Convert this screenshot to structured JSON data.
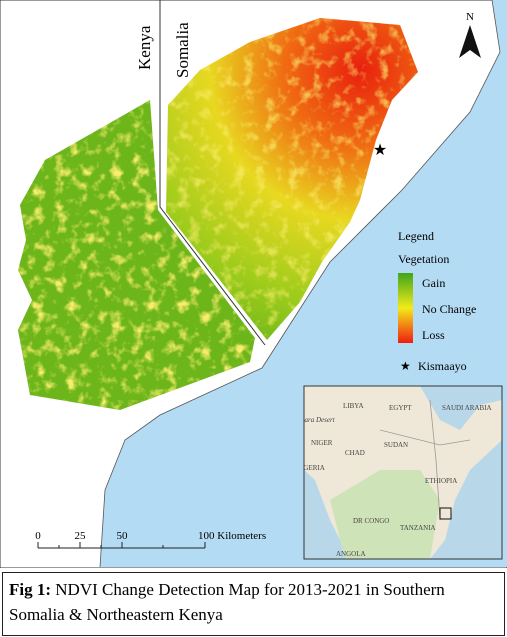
{
  "map": {
    "north_label": "N",
    "country_labels": [
      "Kenya",
      "Somalia"
    ],
    "legend": {
      "title": "Legend",
      "subtitle": "Vegetation",
      "items": [
        "Gain",
        "No Change",
        "Loss"
      ],
      "point_label": "Kismaayo"
    },
    "scale_bar": {
      "labels": [
        "0",
        "25",
        "50",
        "100 Kilometers"
      ]
    },
    "inset": {
      "labels": [
        "LIBYA",
        "EGYPT",
        "SAUDI ARABIA",
        "Sahara Desert",
        "NIGER",
        "CHAD",
        "SUDAN",
        "NIGERIA",
        "ETHIOPIA",
        "DR CONGO",
        "TANZANIA",
        "ANGOLA"
      ]
    }
  },
  "caption": {
    "label": "Fig 1:",
    "text": "NDVI Change Detection Map for 2013-2021 in Southern Somalia & Northeastern Kenya"
  }
}
